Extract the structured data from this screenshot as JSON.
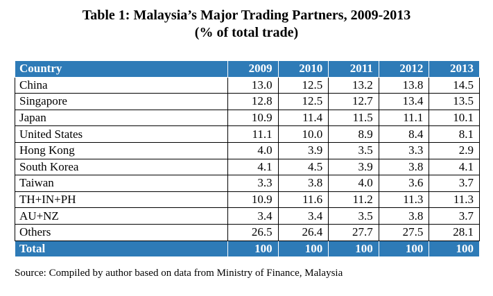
{
  "title": {
    "line1": "Table 1: Malaysia’s Major Trading Partners, 2009-2013",
    "line2": "(% of total trade)"
  },
  "table": {
    "header": {
      "country": "Country",
      "years": [
        "2009",
        "2010",
        "2011",
        "2012",
        "2013"
      ]
    },
    "rows": [
      {
        "country": "China",
        "values": [
          "13.0",
          "12.5",
          "13.2",
          "13.8",
          "14.5"
        ]
      },
      {
        "country": "Singapore",
        "values": [
          "12.8",
          "12.5",
          "12.7",
          "13.4",
          "13.5"
        ]
      },
      {
        "country": "Japan",
        "values": [
          "10.9",
          "11.4",
          "11.5",
          "11.1",
          "10.1"
        ]
      },
      {
        "country": "United States",
        "values": [
          "11.1",
          "10.0",
          "8.9",
          "8.4",
          "8.1"
        ]
      },
      {
        "country": "Hong Kong",
        "values": [
          "4.0",
          "3.9",
          "3.5",
          "3.3",
          "2.9"
        ]
      },
      {
        "country": "South Korea",
        "values": [
          "4.1",
          "4.5",
          "3.9",
          "3.8",
          "4.1"
        ]
      },
      {
        "country": "Taiwan",
        "values": [
          "3.3",
          "3.8",
          "4.0",
          "3.6",
          "3.7"
        ]
      },
      {
        "country": "TH+IN+PH",
        "values": [
          "10.9",
          "11.6",
          "11.2",
          "11.3",
          "11.3"
        ]
      },
      {
        "country": "AU+NZ",
        "values": [
          "3.4",
          "3.4",
          "3.5",
          "3.8",
          "3.7"
        ]
      },
      {
        "country": "Others",
        "values": [
          "26.5",
          "26.4",
          "27.7",
          "27.5",
          "28.1"
        ]
      }
    ],
    "total": {
      "label": "Total",
      "values": [
        "100",
        "100",
        "100",
        "100",
        "100"
      ]
    }
  },
  "source": "Source: Compiled by author based on data from Ministry of Finance, Malaysia",
  "colors": {
    "header_bg": "#2e7bb7",
    "header_text": "#ffffff"
  },
  "chart_data": {
    "type": "table",
    "title": "Table 1: Malaysia’s Major Trading Partners, 2009-2013",
    "subtitle": "(% of total trade)",
    "columns": [
      "Country",
      "2009",
      "2010",
      "2011",
      "2012",
      "2013"
    ],
    "rows": [
      [
        "China",
        13.0,
        12.5,
        13.2,
        13.8,
        14.5
      ],
      [
        "Singapore",
        12.8,
        12.5,
        12.7,
        13.4,
        13.5
      ],
      [
        "Japan",
        10.9,
        11.4,
        11.5,
        11.1,
        10.1
      ],
      [
        "United States",
        11.1,
        10.0,
        8.9,
        8.4,
        8.1
      ],
      [
        "Hong Kong",
        4.0,
        3.9,
        3.5,
        3.3,
        2.9
      ],
      [
        "South Korea",
        4.1,
        4.5,
        3.9,
        3.8,
        4.1
      ],
      [
        "Taiwan",
        3.3,
        3.8,
        4.0,
        3.6,
        3.7
      ],
      [
        "TH+IN+PH",
        10.9,
        11.6,
        11.2,
        11.3,
        11.3
      ],
      [
        "AU+NZ",
        3.4,
        3.4,
        3.5,
        3.8,
        3.7
      ],
      [
        "Others",
        26.5,
        26.4,
        27.7,
        27.5,
        28.1
      ],
      [
        "Total",
        100,
        100,
        100,
        100,
        100
      ]
    ]
  }
}
